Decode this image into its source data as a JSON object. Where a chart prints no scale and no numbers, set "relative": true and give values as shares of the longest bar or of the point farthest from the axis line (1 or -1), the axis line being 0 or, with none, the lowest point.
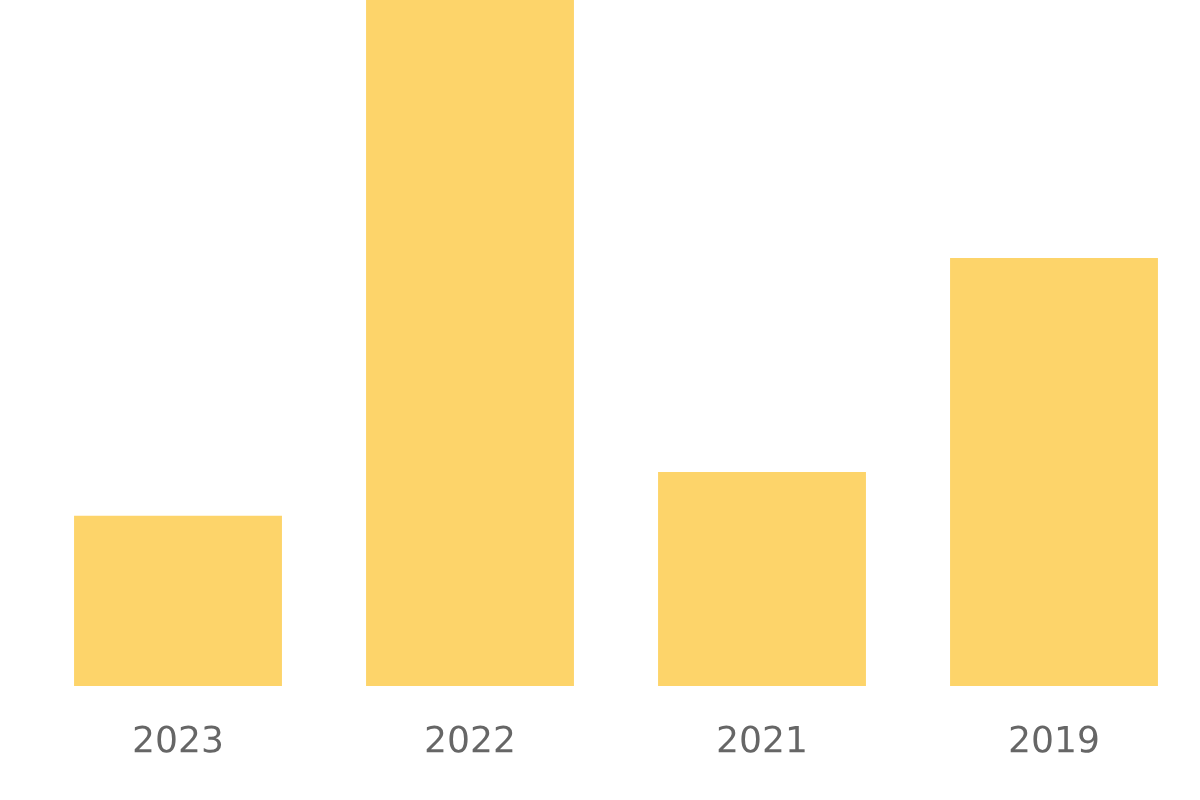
{
  "chart_data": {
    "type": "bar",
    "relative": true,
    "categories": [
      "2023",
      "2022",
      "2021",
      "2019"
    ],
    "values": [
      0.248,
      1,
      0.312,
      0.624
    ],
    "color": "#fdd46a",
    "grid": false,
    "legend": false
  }
}
